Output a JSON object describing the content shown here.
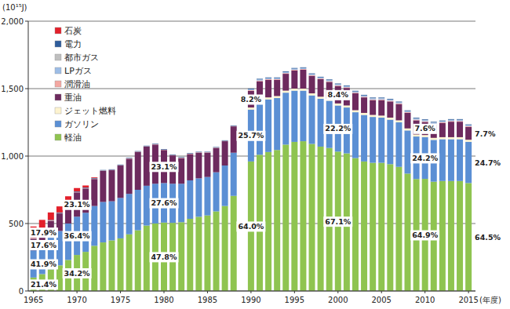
{
  "chart_data": {
    "type": "bar",
    "stacked": true,
    "grid": true,
    "legend": "upper left",
    "y_label": "(10¹⁵J)",
    "x_label": "(年度)",
    "x": [
      1965,
      1966,
      1967,
      1968,
      1969,
      1970,
      1971,
      1972,
      1973,
      1974,
      1975,
      1976,
      1977,
      1978,
      1979,
      1980,
      1981,
      1982,
      1983,
      1984,
      1985,
      1986,
      1987,
      1988,
      1989,
      1990,
      1991,
      1992,
      1993,
      1994,
      1995,
      1996,
      1997,
      1998,
      1999,
      2000,
      2001,
      2002,
      2003,
      2004,
      2005,
      2006,
      2007,
      2008,
      2009,
      2010,
      2011,
      2012,
      2013,
      2014,
      2015
    ],
    "xlim": [
      1964.4,
      2015.8
    ],
    "xticks": [
      1965,
      1970,
      1975,
      1980,
      1985,
      1990,
      1995,
      2000,
      2005,
      2010,
      2015
    ],
    "ylim": [
      0,
      2000
    ],
    "yticks": [
      0,
      500,
      {
        "value": 1000,
        "label": "1,000"
      },
      {
        "value": 1500,
        "label": "1,500"
      },
      {
        "value": 2000,
        "label": "2,000"
      }
    ],
    "series": [
      {
        "name": "石炭",
        "color": "#e3202b",
        "values": [
          86,
          70,
          55,
          45,
          35,
          25,
          15,
          5,
          0,
          0,
          0,
          0,
          0,
          0,
          0,
          0,
          0,
          0,
          0,
          0,
          0,
          0,
          0,
          0,
          null,
          0,
          0,
          0,
          0,
          0,
          0,
          0,
          0,
          0,
          0,
          0,
          0,
          0,
          0,
          0,
          0,
          0,
          0,
          0,
          0,
          0,
          0,
          0,
          0,
          0,
          0
        ]
      },
      {
        "name": "電力",
        "color": "#2f5d9b",
        "values": [
          4,
          4,
          4,
          4,
          4,
          4,
          4,
          4,
          4,
          4,
          4,
          4,
          4,
          4,
          4,
          4,
          4,
          4,
          4,
          4,
          4,
          4,
          4,
          4,
          null,
          5,
          5,
          5,
          5,
          5,
          5,
          5,
          5,
          5,
          5,
          5,
          5,
          5,
          5,
          5,
          5,
          5,
          5,
          5,
          5,
          5,
          5,
          5,
          5,
          5,
          5
        ]
      },
      {
        "name": "都市ガス",
        "color": "#bfbfbf",
        "values": [
          0,
          0,
          0,
          0,
          0,
          0,
          0,
          0,
          0,
          0,
          0,
          0,
          0,
          0,
          0,
          0,
          0,
          0,
          0,
          0,
          0,
          0,
          0,
          0,
          null,
          0,
          0,
          0,
          0,
          0,
          0,
          0,
          0,
          0,
          0,
          1,
          1,
          1,
          1,
          1,
          1,
          1,
          1,
          1,
          1,
          1,
          1,
          1,
          1,
          1,
          1
        ]
      },
      {
        "name": "LPガス",
        "color": "#9dbde6",
        "values": [
          0,
          0,
          0,
          0,
          0,
          0,
          0,
          0,
          0,
          0,
          0,
          0,
          0,
          0,
          0,
          0,
          0,
          0,
          0,
          0,
          0,
          0,
          0,
          0,
          null,
          8,
          8,
          8,
          8,
          8,
          8,
          8,
          8,
          8,
          8,
          8,
          8,
          8,
          8,
          8,
          8,
          8,
          8,
          8,
          8,
          8,
          8,
          8,
          8,
          8,
          8
        ]
      },
      {
        "name": "潤滑油",
        "color": "#f3a7a1",
        "values": [
          3,
          3,
          3,
          3,
          3,
          3,
          3,
          3,
          3,
          3,
          3,
          3,
          3,
          3,
          3,
          3,
          3,
          3,
          3,
          3,
          3,
          3,
          3,
          3,
          null,
          5,
          5,
          5,
          5,
          5,
          5,
          5,
          5,
          5,
          5,
          5,
          5,
          5,
          5,
          5,
          5,
          5,
          5,
          5,
          5,
          5,
          5,
          5,
          5,
          5,
          5
        ]
      },
      {
        "name": "重油",
        "color": "#6d2a5e",
        "values": [
          84,
          100,
          120,
          130,
          160,
          180,
          180,
          200,
          230,
          230,
          240,
          260,
          280,
          290,
          290,
          245,
          210,
          190,
          195,
          190,
          180,
          180,
          180,
          195,
          null,
          123,
          135,
          130,
          120,
          125,
          135,
          140,
          130,
          130,
          125,
          129,
          130,
          125,
          115,
          110,
          115,
          120,
          120,
          115,
          105,
          97,
          100,
          105,
          115,
          115,
          95
        ]
      },
      {
        "name": "ジェット燃料",
        "color": "#fdf3cf",
        "values": [
          0,
          0,
          0,
          0,
          0,
          0,
          0,
          0,
          0,
          0,
          0,
          0,
          0,
          0,
          0,
          0,
          0,
          0,
          0,
          0,
          0,
          0,
          0,
          0,
          null,
          15,
          15,
          15,
          15,
          15,
          15,
          15,
          15,
          15,
          15,
          15,
          15,
          15,
          15,
          15,
          15,
          15,
          15,
          15,
          15,
          15,
          15,
          15,
          15,
          15,
          15
        ]
      },
      {
        "name": "ガソリン",
        "color": "#5b8fd4",
        "values": [
          201,
          225,
          240,
          255,
          270,
          284,
          290,
          295,
          300,
          290,
          300,
          300,
          300,
          295,
          295,
          293,
          290,
          285,
          285,
          285,
          285,
          290,
          300,
          320,
          null,
          385,
          395,
          390,
          385,
          385,
          380,
          375,
          360,
          355,
          350,
          342,
          340,
          340,
          345,
          340,
          335,
          330,
          330,
          320,
          315,
          310,
          310,
          310,
          310,
          310,
          306
        ]
      },
      {
        "name": "軽油",
        "color": "#8fc450",
        "values": [
          100,
          125,
          160,
          190,
          230,
          267,
          290,
          335,
          360,
          375,
          390,
          420,
          450,
          485,
          500,
          507,
          505,
          510,
          535,
          550,
          560,
          590,
          630,
          705,
          null,
          960,
          1010,
          1030,
          1045,
          1085,
          1105,
          1110,
          1090,
          1070,
          1060,
          1033,
          1020,
          985,
          960,
          950,
          950,
          940,
          920,
          870,
          830,
          831,
          810,
          815,
          815,
          815,
          800
        ]
      }
    ],
    "annotations": [
      {
        "text": "17.9%",
        "x": 1965,
        "series": "石炭"
      },
      {
        "text": "17.6%",
        "x": 1965,
        "series": "重油"
      },
      {
        "text": "41.9%",
        "x": 1965,
        "series": "ガソリン"
      },
      {
        "text": "21.4%",
        "x": 1965,
        "series": "軽油"
      },
      {
        "text": "23.1%",
        "x": 1970,
        "series": "重油"
      },
      {
        "text": "36.4%",
        "x": 1970,
        "series": "ガソリン"
      },
      {
        "text": "34.2%",
        "x": 1970,
        "series": "軽油"
      },
      {
        "text": "23.1%",
        "x": 1980,
        "series": "重油"
      },
      {
        "text": "27.6%",
        "x": 1980,
        "series": "ガソリン"
      },
      {
        "text": "47.8%",
        "x": 1980,
        "series": "軽油"
      },
      {
        "text": "8.2%",
        "x": 1990,
        "series": "重油"
      },
      {
        "text": "25.7%",
        "x": 1990,
        "series": "ガソリン"
      },
      {
        "text": "64.0%",
        "x": 1990,
        "series": "軽油"
      },
      {
        "text": "8.4%",
        "x": 2000,
        "series": "重油"
      },
      {
        "text": "22.2%",
        "x": 2000,
        "series": "ガソリン"
      },
      {
        "text": "67.1%",
        "x": 2000,
        "series": "軽油"
      },
      {
        "text": "7.6%",
        "x": 2010,
        "series": "重油"
      },
      {
        "text": "24.2%",
        "x": 2010,
        "series": "ガソリン"
      },
      {
        "text": "64.9%",
        "x": 2010,
        "series": "軽油"
      },
      {
        "text": "7.7%",
        "x": 2015,
        "series": "重油"
      },
      {
        "text": "24.7%",
        "x": 2015,
        "series": "ガソリン"
      },
      {
        "text": "64.5%",
        "x": 2015,
        "series": "軽油"
      }
    ]
  }
}
